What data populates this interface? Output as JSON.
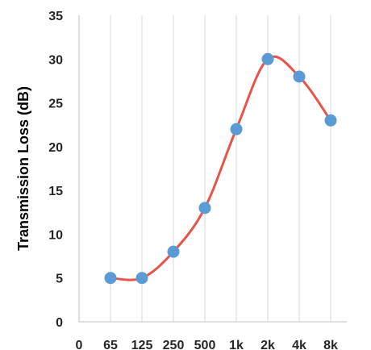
{
  "chart_data": {
    "type": "line",
    "title": "",
    "xlabel": "",
    "ylabel": "Transmission Loss (dB)",
    "x_ticks": [
      "0",
      "65",
      "125",
      "250",
      "500",
      "1k",
      "2k",
      "4k",
      "8k"
    ],
    "y_ticks": [
      "0",
      "5",
      "10",
      "15",
      "20",
      "25",
      "30",
      "35"
    ],
    "ylim": [
      0,
      35
    ],
    "grid": "vertical",
    "legend": "none",
    "series": [
      {
        "categories": [
          "65",
          "125",
          "250",
          "500",
          "1k",
          "2k",
          "4k",
          "8k"
        ],
        "values": [
          5,
          5,
          8,
          13,
          22,
          30,
          28,
          23
        ],
        "line_color": "#E8534A",
        "marker_color": "#5B9BD5",
        "smooth": true
      }
    ]
  }
}
